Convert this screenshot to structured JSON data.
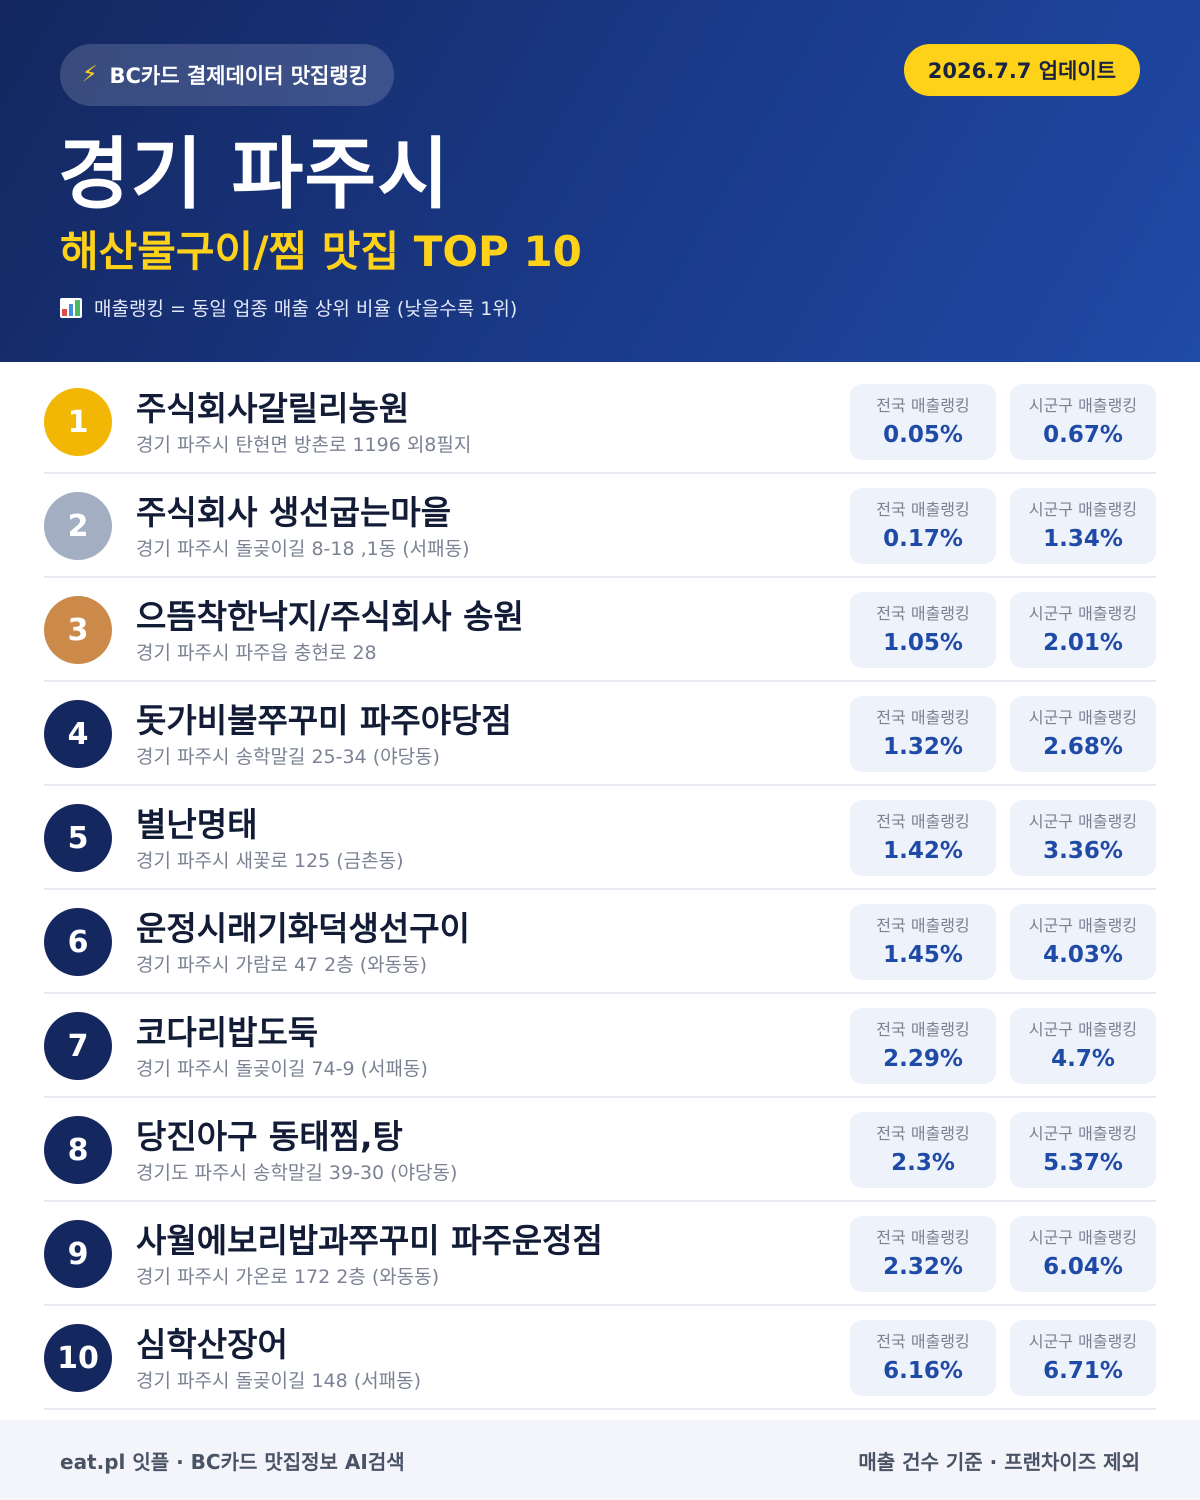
{
  "header": {
    "brand_icon": "lightning-bolt-icon",
    "brand_label": "BC카드 결제데이터 맛집랭킹",
    "update_label": "2026.7.7 업데이트",
    "city_title": "경기 파주시",
    "category_title": "해산물구이/찜 맛집 TOP 10",
    "legend_icon": "bar-chart-icon",
    "legend_text": "매출랭킹 = 동일 업종 매출 상위 비율 (낮을수록 1위)"
  },
  "colors": {
    "header_dark": "#14275f",
    "header_light": "#1f4aa6",
    "accent_yellow": "#ffd21a",
    "gold": "#f2b705",
    "silver": "#a3aec2",
    "bronze": "#cc8a4a",
    "value_blue": "#1f4aa6"
  },
  "stat_labels": {
    "national": "전국 매출랭킹",
    "local": "시군구 매출랭킹"
  },
  "restaurants": [
    {
      "rank": "1",
      "name": "주식회사갈릴리농원",
      "address": "경기 파주시 탄현면 방촌로 1196 외8필지",
      "national": "0.05%",
      "local": "0.67%"
    },
    {
      "rank": "2",
      "name": "주식회사 생선굽는마을",
      "address": "경기 파주시 돌곶이길 8-18 ,1동 (서패동)",
      "national": "0.17%",
      "local": "1.34%"
    },
    {
      "rank": "3",
      "name": "으뜸착한낙지/주식회사 송원",
      "address": "경기 파주시 파주읍 충현로 28",
      "national": "1.05%",
      "local": "2.01%"
    },
    {
      "rank": "4",
      "name": "돗가비불쭈꾸미 파주야당점",
      "address": "경기 파주시 송학말길 25-34 (야당동)",
      "national": "1.32%",
      "local": "2.68%"
    },
    {
      "rank": "5",
      "name": "별난명태",
      "address": "경기 파주시 새꽃로 125 (금촌동)",
      "national": "1.42%",
      "local": "3.36%"
    },
    {
      "rank": "6",
      "name": "운정시래기화덕생선구이",
      "address": "경기 파주시 가람로 47 2층 (와동동)",
      "national": "1.45%",
      "local": "4.03%"
    },
    {
      "rank": "7",
      "name": "코다리밥도둑",
      "address": "경기 파주시 돌곶이길 74-9 (서패동)",
      "national": "2.29%",
      "local": "4.7%"
    },
    {
      "rank": "8",
      "name": "당진아구 동태찜,탕",
      "address": "경기도 파주시 송학말길 39-30 (야당동)",
      "national": "2.3%",
      "local": "5.37%"
    },
    {
      "rank": "9",
      "name": "사월에보리밥과쭈꾸미 파주운정점",
      "address": "경기 파주시 가온로 172 2층 (와동동)",
      "national": "2.32%",
      "local": "6.04%"
    },
    {
      "rank": "10",
      "name": "심학산장어",
      "address": "경기 파주시 돌곶이길 148 (서패동)",
      "national": "6.16%",
      "local": "6.71%"
    }
  ],
  "footer": {
    "left": "eat.pl 잇플 · BC카드 맛집정보 AI검색",
    "right": "매출 건수 기준 · 프랜차이즈 제외"
  }
}
